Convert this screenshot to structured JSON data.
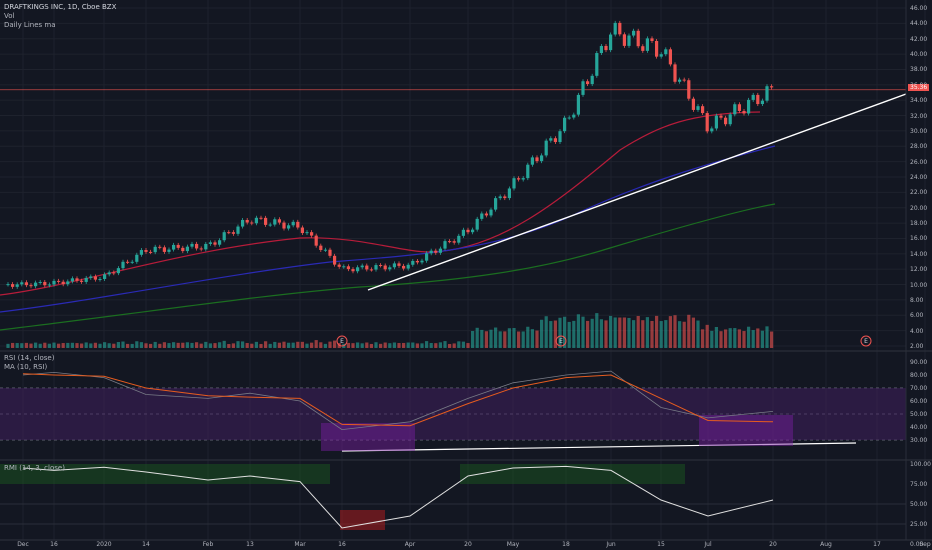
{
  "header": {
    "title": "DRAFTKINGS INC, 1D, Cboe BZX",
    "volume_label": "Vol",
    "ma_label": "Daily Lines ma",
    "rsi_label": "RSI (14, close)",
    "rsi_ma_label": "MA (10, RSI)",
    "rmi_label": "RMI (14, 3, close)"
  },
  "price_axis": [
    "46.00",
    "44.00",
    "42.00",
    "40.00",
    "38.00",
    "36.00",
    "34.00",
    "32.00",
    "30.00",
    "28.00",
    "26.00",
    "24.00",
    "22.00",
    "20.00",
    "18.00",
    "16.00",
    "14.00",
    "12.00",
    "10.00",
    "8.00",
    "6.00",
    "4.00",
    "2.00"
  ],
  "last_price": "35.36",
  "rsi_axis": [
    "90.00",
    "80.00",
    "70.00",
    "60.00",
    "50.00",
    "40.00",
    "30.00"
  ],
  "rmi_axis": [
    "100.00",
    "75.00",
    "50.00",
    "25.00",
    "0.00"
  ],
  "time_axis": [
    "Dec",
    "16",
    "2020",
    "14",
    "Feb",
    "13",
    "Mar",
    "16",
    "Apr",
    "20",
    "May",
    "18",
    "Jun",
    "15",
    "Jul",
    "20",
    "Aug",
    "17",
    "Sep"
  ],
  "earnings_markers": [
    "E",
    "E",
    "E"
  ],
  "colors": {
    "background": "#131722",
    "up": "#26a69a",
    "down": "#ef5350",
    "ma_red": "#b71c3a",
    "ma_blue": "#2a2ab5",
    "ma_green": "#1b6e20",
    "rsi_band": "#3f1f5c",
    "rsi_ma": "#e65c1f",
    "rmi_line": "#43a047"
  },
  "chart_data": [
    {
      "type": "candlestick",
      "title": "DRAFTKINGS INC, 1D, Cboe BZX",
      "ylim": [
        0,
        47
      ],
      "x": [
        "Dec",
        "16",
        "2020",
        "14",
        "Feb",
        "13",
        "Mar",
        "16",
        "Apr",
        "20",
        "May",
        "18",
        "Jun",
        "15",
        "Jul",
        "20"
      ],
      "close": [
        10.0,
        10.2,
        11.0,
        14.5,
        15.0,
        18.5,
        17.5,
        12.0,
        12.5,
        17.0,
        23.0,
        31.0,
        43.0,
        40.5,
        30.5,
        35.36
      ],
      "last_price": 35.36
    },
    {
      "type": "line",
      "title": "RSI (14, close)",
      "ylim": [
        30,
        90
      ],
      "series": [
        {
          "name": "RSI (14, close)",
          "values": [
            80,
            82,
            78,
            65,
            62,
            66,
            60,
            38,
            44,
            62,
            74,
            80,
            83,
            55,
            47,
            52
          ]
        },
        {
          "name": "MA (10, RSI)",
          "values": [
            81,
            80,
            79,
            70,
            64,
            63,
            62,
            42,
            41,
            58,
            70,
            78,
            80,
            62,
            45,
            44
          ]
        }
      ]
    },
    {
      "type": "line",
      "title": "RMI (14, 3, close)",
      "ylim": [
        0,
        100
      ],
      "series": [
        {
          "name": "RMI (14, 3, close)",
          "values": [
            95,
            92,
            96,
            90,
            80,
            85,
            78,
            20,
            35,
            85,
            95,
            97,
            92,
            55,
            35,
            55
          ]
        }
      ]
    }
  ]
}
